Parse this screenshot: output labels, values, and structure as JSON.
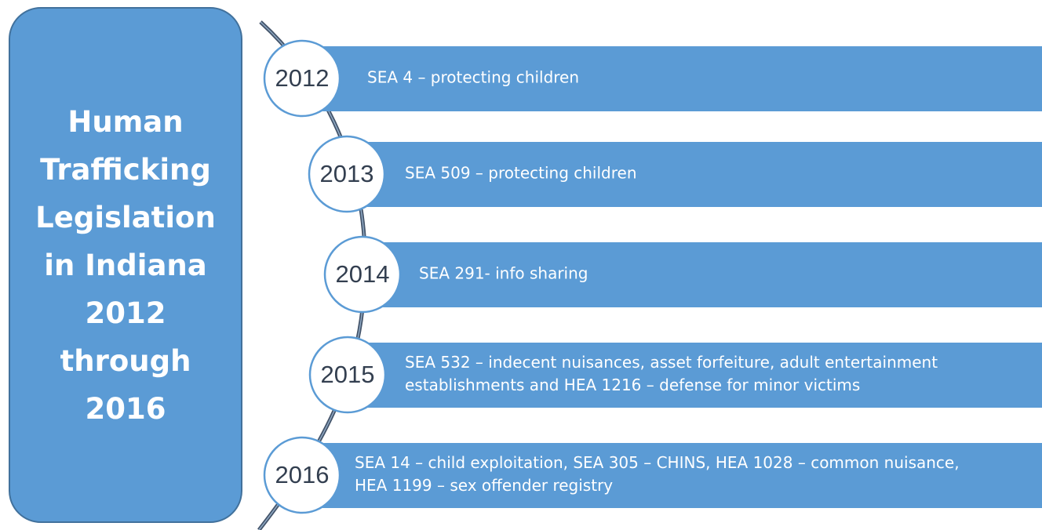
{
  "title_lines": [
    "Human",
    "Trafficking",
    "Legislation",
    "in Indiana",
    "2012",
    "through",
    "2016"
  ],
  "items": [
    {
      "year": "2012",
      "lines": [
        "SEA 4 – protecting children"
      ]
    },
    {
      "year": "2013",
      "lines": [
        "SEA 509 – protecting children"
      ]
    },
    {
      "year": "2014",
      "lines": [
        "SEA 291- info sharing"
      ]
    },
    {
      "year": "2015",
      "lines": [
        "SEA 532 – indecent nuisances, asset forfeiture, adult entertainment",
        "establishments and HEA 1216 – defense for minor victims"
      ]
    },
    {
      "year": "2016",
      "lines": [
        "SEA 14 – child exploitation, SEA 305 – CHINS, HEA 1028 – common nuisance,",
        "HEA 1199 – sex offender registry"
      ]
    }
  ]
}
